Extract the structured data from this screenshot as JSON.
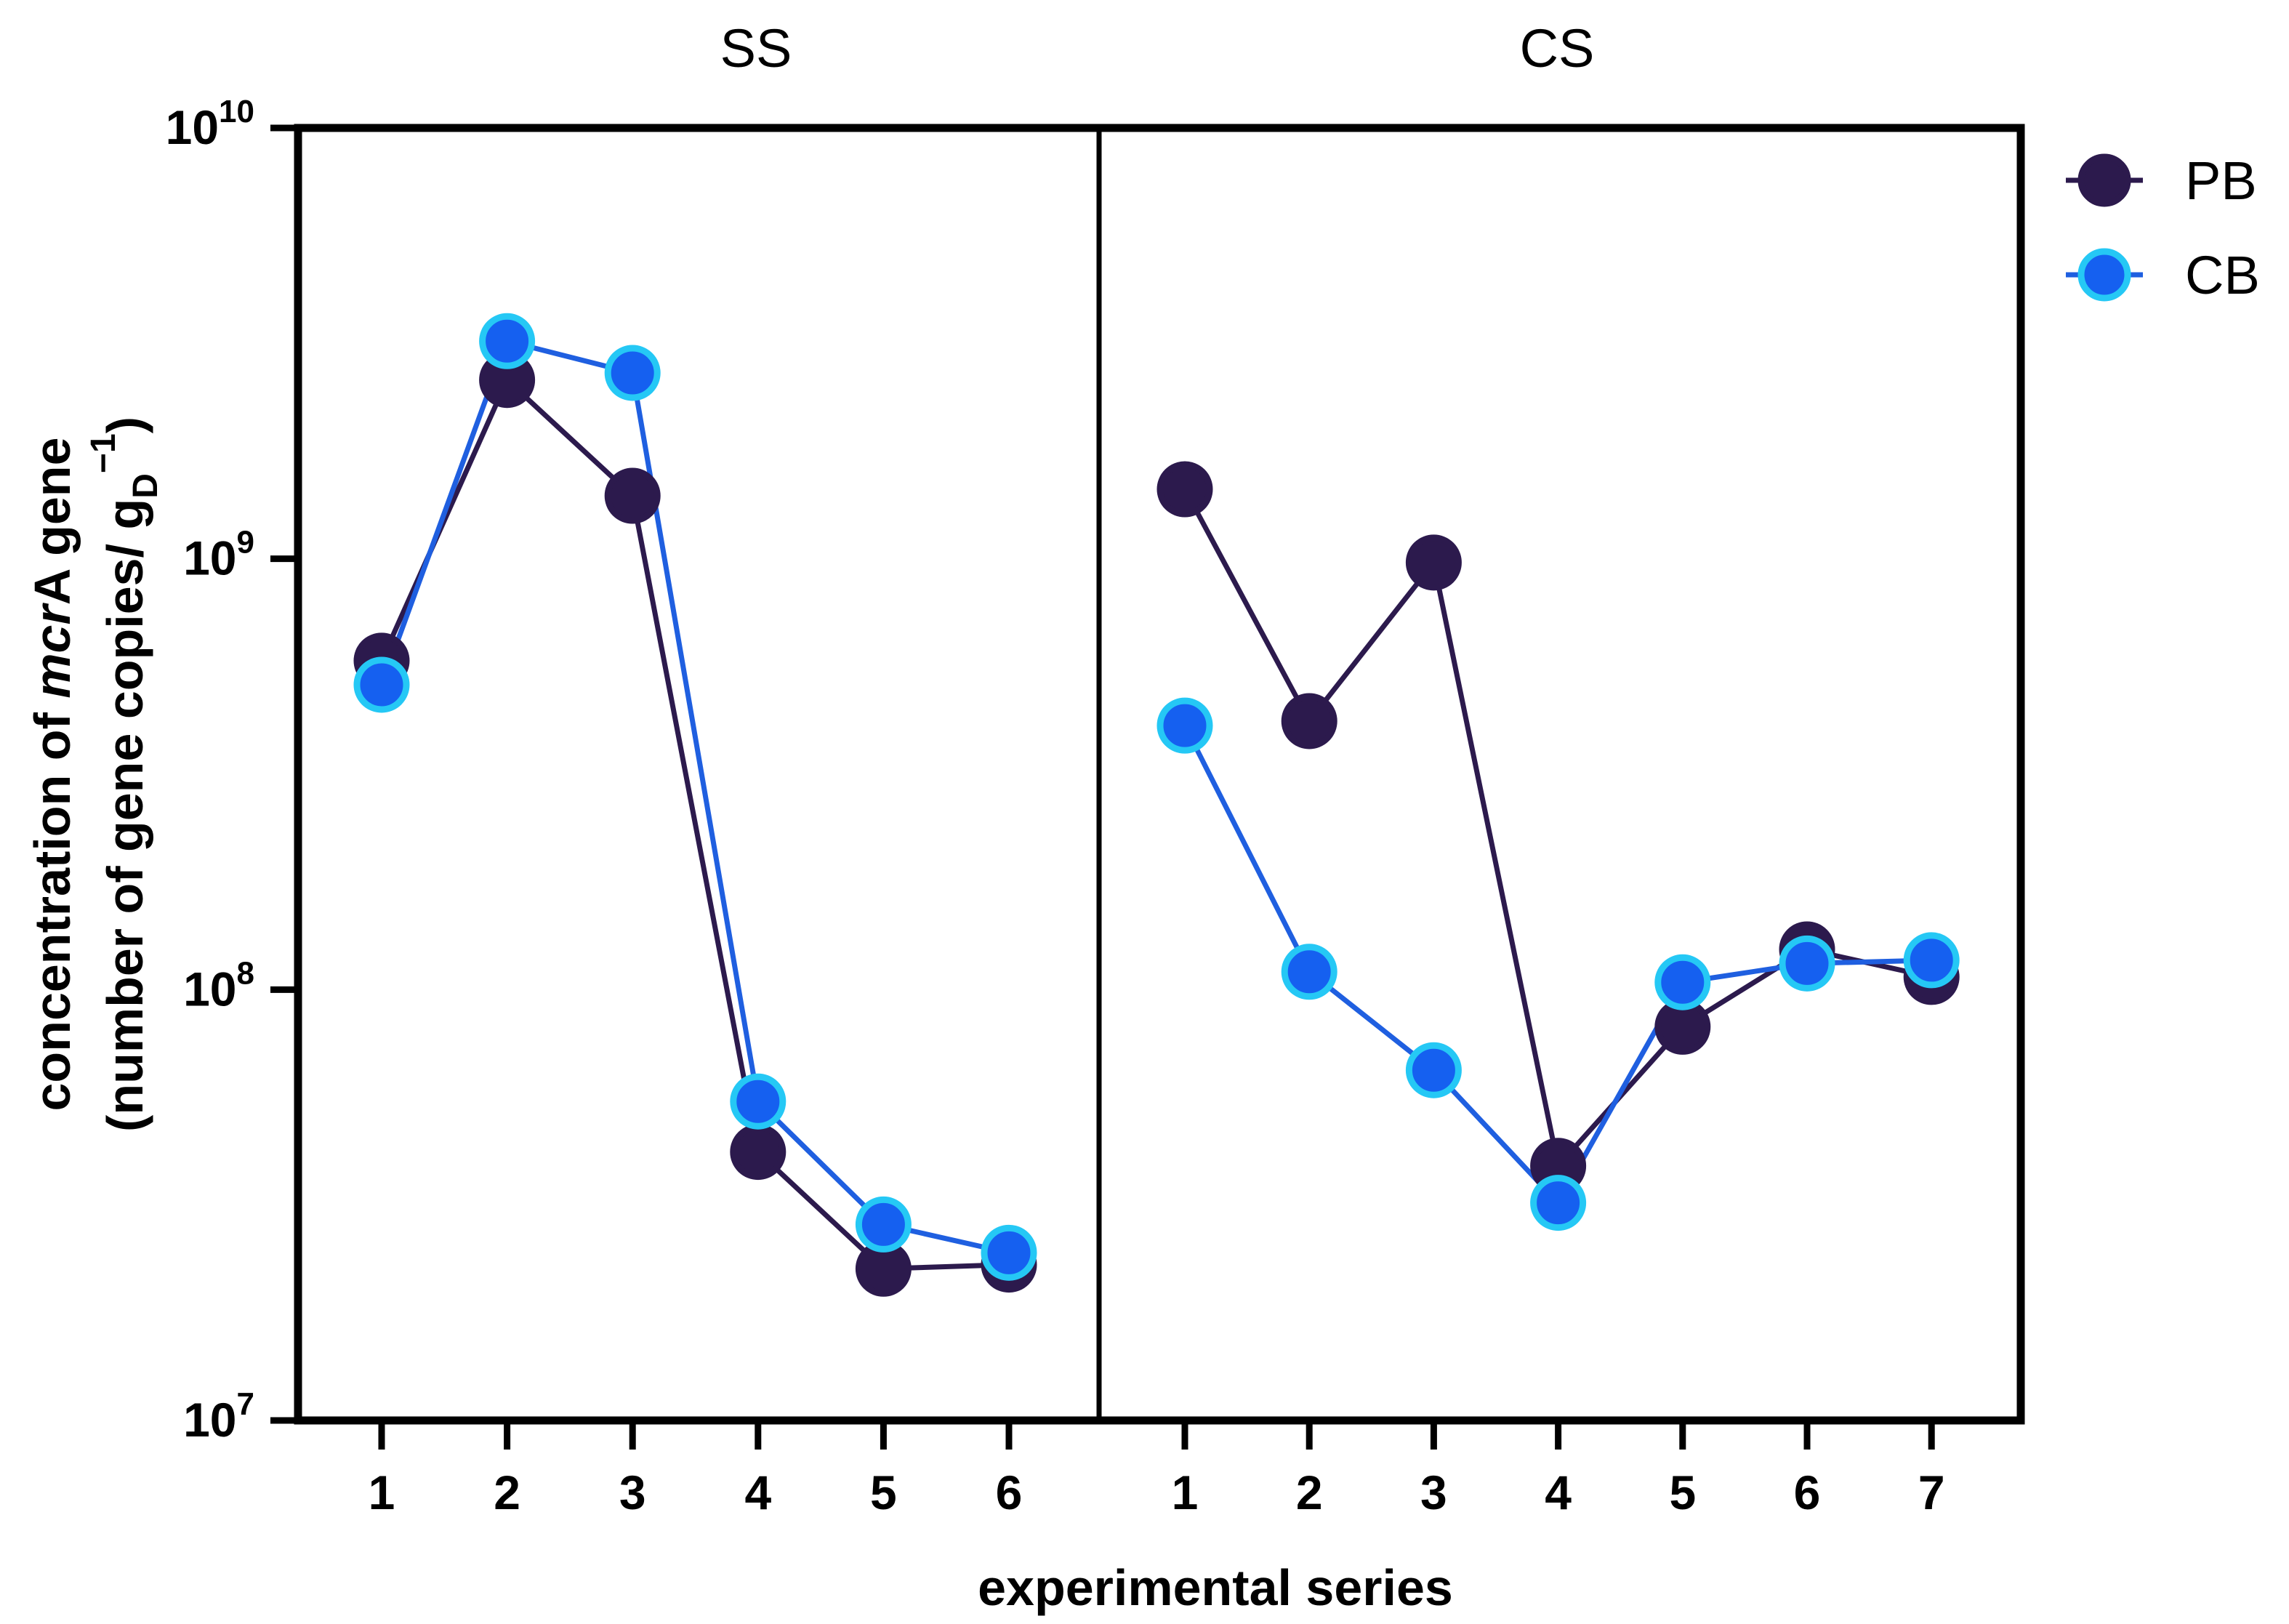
{
  "chart_data": {
    "type": "line",
    "y_scale": "log",
    "ylim": [
      10000000,
      10000000000
    ],
    "y_ticks": [
      {
        "value": 10000000,
        "base": "10",
        "exp": "7"
      },
      {
        "value": 100000000,
        "base": "10",
        "exp": "8"
      },
      {
        "value": 1000000000,
        "base": "10",
        "exp": "9"
      },
      {
        "value": 10000000000,
        "base": "10",
        "exp": "10"
      }
    ],
    "ylabel": {
      "line1_pre": "concentration of ",
      "line1_italic": "mcr",
      "line1_post": "A gene",
      "line2_pre": "(number of gene copies/ g",
      "line2_sub": "D",
      "line2_sup": "−1",
      "line2_post": ")"
    },
    "xlabel": "experimental series",
    "legend": {
      "position": "top-right",
      "entries": [
        {
          "name": "PB",
          "line_color": "#2c1a4d",
          "marker_color": "#2c1a4d",
          "edge_color": "#2c1a4d"
        },
        {
          "name": "CB",
          "line_color": "#1f5fe0",
          "marker_color": "#1560f0",
          "edge_color": "#25c8f5"
        }
      ]
    },
    "panels": [
      {
        "title": "SS",
        "categories": [
          "1",
          "2",
          "3",
          "4",
          "5",
          "6"
        ],
        "series": [
          {
            "name": "PB",
            "values": [
              580000000,
              2600000000,
              1400000000,
              42000000,
              22500000,
              23000000
            ]
          },
          {
            "name": "CB",
            "values": [
              510000000,
              3200000000,
              2700000000,
              55000000,
              28500000,
              24500000
            ]
          }
        ]
      },
      {
        "title": "CS",
        "categories": [
          "1",
          "2",
          "3",
          "4",
          "5",
          "6",
          "7"
        ],
        "series": [
          {
            "name": "PB",
            "values": [
              1450000000,
              420000000,
              980000000,
              39000000,
              82000000,
              124000000,
              107000000
            ]
          },
          {
            "name": "CB",
            "values": [
              410000000,
              110000000,
              65000000,
              32000000,
              104000000,
              115000000,
              117000000
            ]
          }
        ]
      }
    ]
  }
}
